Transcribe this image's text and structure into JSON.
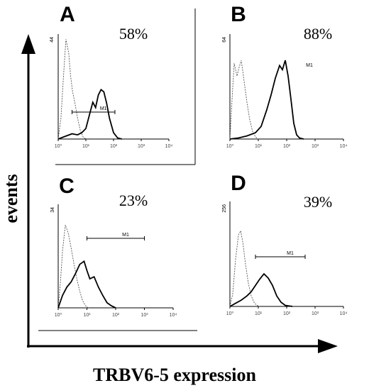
{
  "figure": {
    "y_axis_title": "events",
    "x_axis_title": "TRBV6-5 expression",
    "colors": {
      "ink": "#000000",
      "background": "#ffffff"
    }
  },
  "chart_data": [
    {
      "type": "area",
      "panel": "A",
      "percent": "58%",
      "gate": {
        "label": "M1",
        "from": 0.5,
        "to": 2.05
      },
      "x_scale": "log",
      "x_ticks": [
        "10⁰",
        "10¹",
        "10²",
        "10³",
        "10⁴"
      ],
      "x_range_decades": [
        0,
        4
      ],
      "y_tick": "44",
      "series": [
        {
          "style": "dotted",
          "points": [
            [
              0,
              0
            ],
            [
              0.1,
              0.2
            ],
            [
              0.18,
              0.55
            ],
            [
              0.28,
              0.95
            ],
            [
              0.38,
              0.82
            ],
            [
              0.45,
              0.6
            ],
            [
              0.52,
              0.45
            ],
            [
              0.6,
              0.35
            ],
            [
              0.7,
              0.2
            ],
            [
              0.8,
              0.08
            ],
            [
              0.9,
              0.02
            ],
            [
              1.0,
              0
            ]
          ]
        },
        {
          "style": "solid",
          "points": [
            [
              0,
              0
            ],
            [
              0.2,
              0.02
            ],
            [
              0.5,
              0.05
            ],
            [
              0.7,
              0.04
            ],
            [
              0.85,
              0.06
            ],
            [
              1.0,
              0.1
            ],
            [
              1.15,
              0.25
            ],
            [
              1.25,
              0.35
            ],
            [
              1.35,
              0.3
            ],
            [
              1.45,
              0.42
            ],
            [
              1.55,
              0.47
            ],
            [
              1.65,
              0.45
            ],
            [
              1.75,
              0.34
            ],
            [
              1.85,
              0.2
            ],
            [
              2.0,
              0.06
            ],
            [
              2.15,
              0.01
            ],
            [
              2.3,
              0
            ]
          ]
        }
      ]
    },
    {
      "type": "area",
      "panel": "B",
      "percent": "88%",
      "gate": {
        "label": "M1",
        "from": null,
        "to": null
      },
      "x_scale": "log",
      "x_ticks": [
        "10⁰",
        "10¹",
        "10²",
        "10³",
        "10⁴"
      ],
      "x_range_decades": [
        0,
        4
      ],
      "y_tick": "64",
      "series": [
        {
          "style": "dotted",
          "points": [
            [
              0,
              0
            ],
            [
              0.08,
              0.4
            ],
            [
              0.15,
              0.72
            ],
            [
              0.25,
              0.6
            ],
            [
              0.32,
              0.68
            ],
            [
              0.4,
              0.75
            ],
            [
              0.5,
              0.55
            ],
            [
              0.6,
              0.35
            ],
            [
              0.7,
              0.18
            ],
            [
              0.8,
              0.07
            ],
            [
              0.9,
              0.02
            ],
            [
              1.0,
              0
            ]
          ]
        },
        {
          "style": "solid",
          "points": [
            [
              0,
              0
            ],
            [
              0.3,
              0.01
            ],
            [
              0.6,
              0.03
            ],
            [
              0.9,
              0.06
            ],
            [
              1.1,
              0.12
            ],
            [
              1.3,
              0.28
            ],
            [
              1.45,
              0.42
            ],
            [
              1.6,
              0.58
            ],
            [
              1.75,
              0.7
            ],
            [
              1.85,
              0.66
            ],
            [
              1.95,
              0.75
            ],
            [
              2.05,
              0.6
            ],
            [
              2.15,
              0.38
            ],
            [
              2.25,
              0.15
            ],
            [
              2.35,
              0.04
            ],
            [
              2.45,
              0.01
            ],
            [
              2.6,
              0
            ]
          ]
        }
      ]
    },
    {
      "type": "area",
      "panel": "C",
      "percent": "23%",
      "gate": {
        "label": "M1",
        "from": 1.0,
        "to": 3.0
      },
      "x_scale": "log",
      "x_ticks": [
        "10⁰",
        "10¹",
        "10²",
        "10³",
        "10⁴"
      ],
      "x_range_decades": [
        0,
        4
      ],
      "y_tick": "34",
      "series": [
        {
          "style": "dotted",
          "points": [
            [
              0,
              0
            ],
            [
              0.08,
              0.25
            ],
            [
              0.15,
              0.55
            ],
            [
              0.25,
              0.8
            ],
            [
              0.35,
              0.72
            ],
            [
              0.45,
              0.58
            ],
            [
              0.55,
              0.42
            ],
            [
              0.65,
              0.28
            ],
            [
              0.75,
              0.16
            ],
            [
              0.85,
              0.07
            ],
            [
              0.95,
              0.02
            ],
            [
              1.05,
              0
            ]
          ]
        },
        {
          "style": "solid",
          "points": [
            [
              0,
              0
            ],
            [
              0.15,
              0.12
            ],
            [
              0.3,
              0.2
            ],
            [
              0.45,
              0.25
            ],
            [
              0.6,
              0.33
            ],
            [
              0.75,
              0.42
            ],
            [
              0.9,
              0.45
            ],
            [
              1.0,
              0.36
            ],
            [
              1.1,
              0.28
            ],
            [
              1.25,
              0.3
            ],
            [
              1.4,
              0.2
            ],
            [
              1.55,
              0.12
            ],
            [
              1.7,
              0.05
            ],
            [
              1.85,
              0.02
            ],
            [
              2.0,
              0
            ]
          ]
        }
      ]
    },
    {
      "type": "area",
      "panel": "D",
      "percent": "39%",
      "gate": {
        "label": "M1",
        "from": 0.9,
        "to": 2.65
      },
      "x_scale": "log",
      "x_ticks": [
        "10⁰",
        "10¹",
        "10²",
        "10³",
        "10⁴"
      ],
      "x_range_decades": [
        0,
        4
      ],
      "y_tick": "256",
      "series": [
        {
          "style": "dotted",
          "points": [
            [
              0,
              0
            ],
            [
              0.1,
              0.12
            ],
            [
              0.2,
              0.45
            ],
            [
              0.3,
              0.68
            ],
            [
              0.38,
              0.72
            ],
            [
              0.46,
              0.6
            ],
            [
              0.55,
              0.4
            ],
            [
              0.65,
              0.22
            ],
            [
              0.75,
              0.1
            ],
            [
              0.85,
              0.04
            ],
            [
              0.95,
              0.01
            ],
            [
              1.05,
              0
            ]
          ]
        },
        {
          "style": "solid",
          "points": [
            [
              0,
              0
            ],
            [
              0.2,
              0.03
            ],
            [
              0.4,
              0.06
            ],
            [
              0.6,
              0.1
            ],
            [
              0.75,
              0.14
            ],
            [
              0.9,
              0.2
            ],
            [
              1.05,
              0.26
            ],
            [
              1.2,
              0.31
            ],
            [
              1.35,
              0.27
            ],
            [
              1.5,
              0.2
            ],
            [
              1.65,
              0.1
            ],
            [
              1.8,
              0.04
            ],
            [
              1.95,
              0.01
            ],
            [
              2.2,
              0
            ]
          ]
        }
      ]
    }
  ]
}
